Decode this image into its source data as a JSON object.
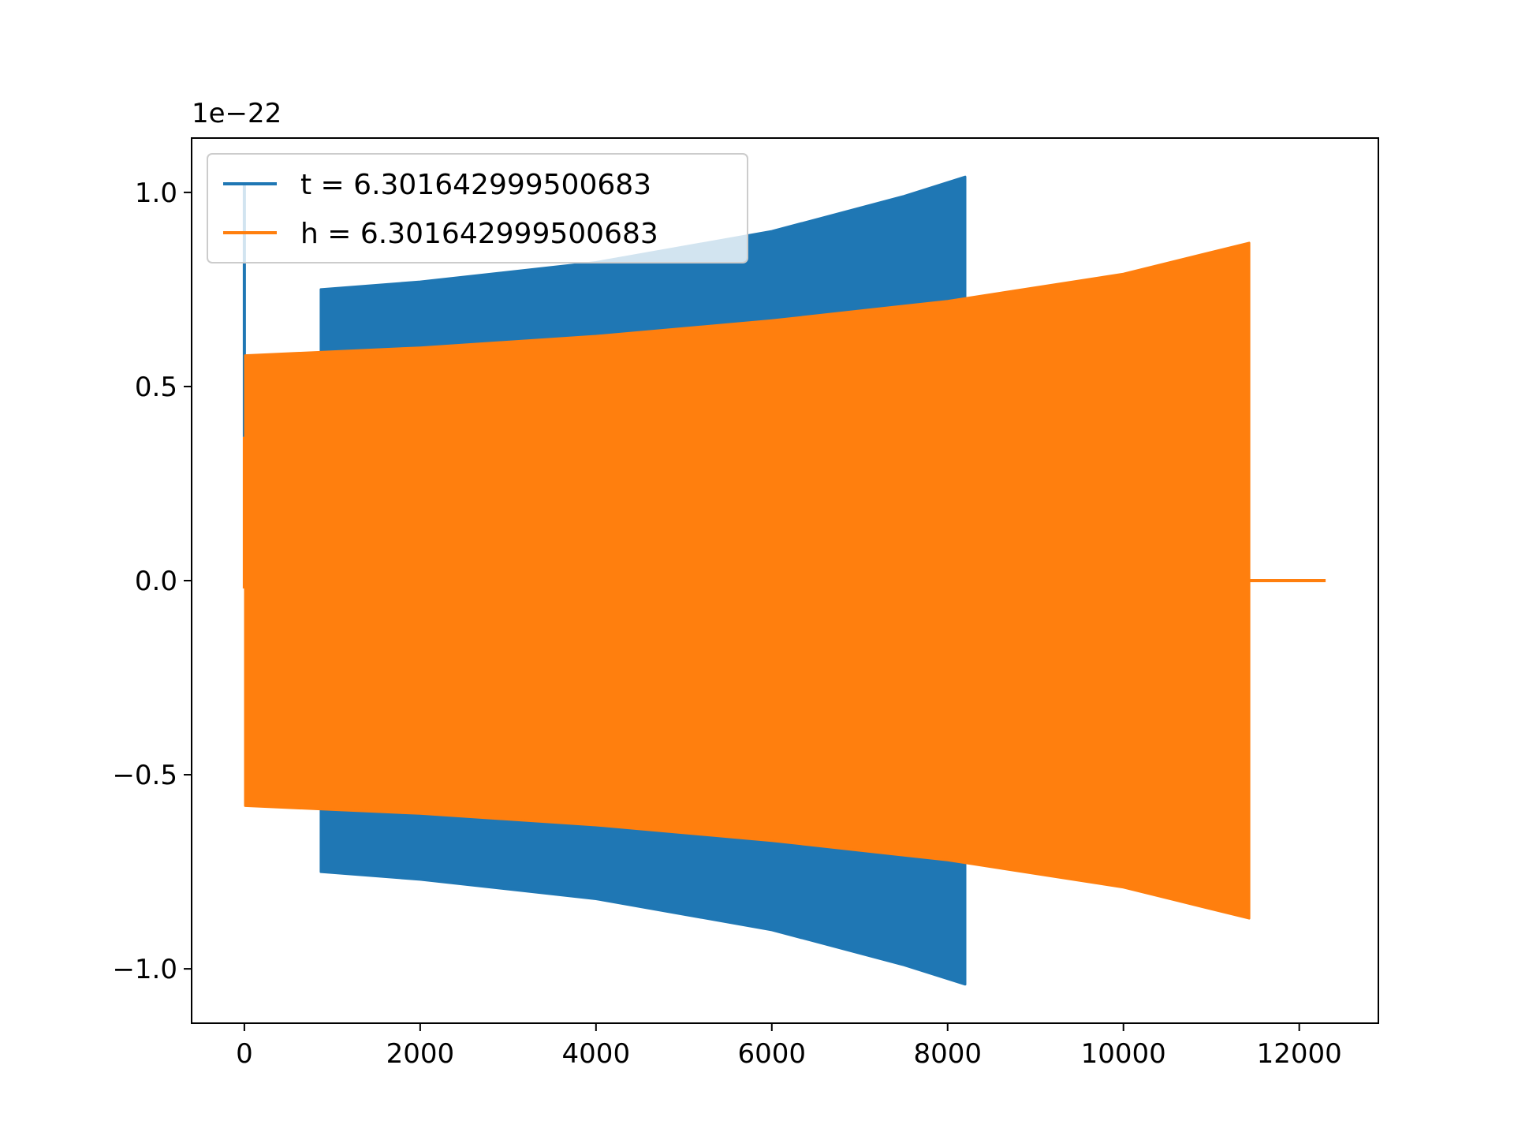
{
  "chart_data": {
    "type": "line",
    "title": "",
    "xlabel": "",
    "ylabel": "",
    "y_offset_label": "1e−22",
    "xlim": [
      -600,
      12900
    ],
    "ylim": [
      -1.14,
      1.14
    ],
    "x_ticks": [
      0,
      2000,
      4000,
      6000,
      8000,
      10000,
      12000
    ],
    "x_tick_labels": [
      "0",
      "2000",
      "4000",
      "6000",
      "8000",
      "10000",
      "12000"
    ],
    "y_ticks": [
      1.0,
      0.5,
      0.0,
      -0.5,
      -1.0
    ],
    "y_tick_labels": [
      "1.0",
      "0.5",
      "0.0",
      "−0.5",
      "−1.0"
    ],
    "grid": false,
    "legend_position": "upper-left",
    "series": [
      {
        "name": "t = 6.301642999500683",
        "color": "#1f77b4",
        "spike": {
          "x": 0,
          "y_max": 1.02,
          "y_min": 0.37
        },
        "envelope": {
          "x": [
            870,
            2000,
            4000,
            6000,
            7500,
            8200
          ],
          "upper": [
            0.75,
            0.77,
            0.82,
            0.9,
            0.99,
            1.04
          ],
          "lower": [
            -0.75,
            -0.77,
            -0.82,
            -0.9,
            -0.99,
            -1.04
          ]
        }
      },
      {
        "name": "h = 6.301642999500683",
        "color": "#ff7f0e",
        "spike": {
          "x": 0,
          "y_max": 0.37,
          "y_min": -0.02
        },
        "envelope": {
          "x": [
            10,
            2000,
            4000,
            6000,
            8000,
            10000,
            11430
          ],
          "upper": [
            0.58,
            0.6,
            0.63,
            0.67,
            0.72,
            0.79,
            0.87
          ],
          "lower": [
            -0.58,
            -0.6,
            -0.63,
            -0.67,
            -0.72,
            -0.79,
            -0.87
          ]
        },
        "flat_tail": {
          "x": [
            11430,
            12300
          ],
          "y": 0.0
        }
      }
    ]
  }
}
